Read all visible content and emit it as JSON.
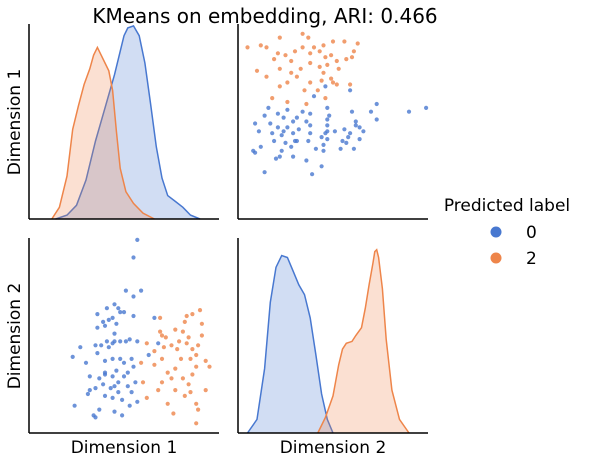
{
  "chart_data": {
    "type": "pairplot",
    "title": "KMeans on embedding, ARI: 0.466",
    "variables": [
      "Dimension 1",
      "Dimension 2"
    ],
    "x_ranges": [
      [
        0.0,
        1.0
      ],
      [
        0.0,
        1.0
      ]
    ],
    "y_ranges": [
      [
        0.0,
        1.0
      ],
      [
        0.0,
        1.0
      ]
    ],
    "grid": false,
    "legend": {
      "title": "Predicted label",
      "placement": "right",
      "entries": [
        {
          "label": "0",
          "color": "#4878d0"
        },
        {
          "label": "2",
          "color": "#ee854a"
        }
      ]
    },
    "series": [
      {
        "label": "0",
        "color": "#4878d0",
        "points": [
          [
            0.57,
            0.99
          ],
          [
            0.55,
            0.9
          ],
          [
            0.36,
            0.61
          ],
          [
            0.59,
            0.73
          ],
          [
            0.51,
            0.73
          ],
          [
            0.55,
            0.7
          ],
          [
            0.45,
            0.66
          ],
          [
            0.47,
            0.64
          ],
          [
            0.41,
            0.64
          ],
          [
            0.48,
            0.62
          ],
          [
            0.55,
            0.6
          ],
          [
            0.44,
            0.59
          ],
          [
            0.42,
            0.58
          ],
          [
            0.39,
            0.57
          ],
          [
            0.46,
            0.56
          ],
          [
            0.4,
            0.55
          ],
          [
            0.36,
            0.54
          ],
          [
            0.53,
            0.48
          ],
          [
            0.57,
            0.47
          ],
          [
            0.51,
            0.47
          ],
          [
            0.48,
            0.47
          ],
          [
            0.45,
            0.47
          ],
          [
            0.41,
            0.47
          ],
          [
            0.44,
            0.46
          ],
          [
            0.35,
            0.45
          ],
          [
            0.38,
            0.45
          ],
          [
            0.42,
            0.44
          ],
          [
            0.27,
            0.44
          ],
          [
            0.36,
            0.41
          ],
          [
            0.54,
            0.38
          ],
          [
            0.48,
            0.38
          ],
          [
            0.44,
            0.38
          ],
          [
            0.4,
            0.37
          ],
          [
            0.3,
            0.36
          ],
          [
            0.5,
            0.36
          ],
          [
            0.55,
            0.34
          ],
          [
            0.46,
            0.32
          ],
          [
            0.52,
            0.31
          ],
          [
            0.4,
            0.3
          ],
          [
            0.44,
            0.29
          ],
          [
            0.5,
            0.29
          ],
          [
            0.32,
            0.29
          ],
          [
            0.37,
            0.28
          ],
          [
            0.47,
            0.26
          ],
          [
            0.56,
            0.26
          ],
          [
            0.39,
            0.25
          ],
          [
            0.52,
            0.24
          ],
          [
            0.35,
            0.23
          ],
          [
            0.43,
            0.23
          ],
          [
            0.32,
            0.22
          ],
          [
            0.47,
            0.21
          ],
          [
            0.54,
            0.21
          ],
          [
            0.31,
            0.2
          ],
          [
            0.4,
            0.19
          ],
          [
            0.44,
            0.18
          ],
          [
            0.49,
            0.17
          ],
          [
            0.57,
            0.16
          ],
          [
            0.53,
            0.14
          ],
          [
            0.24,
            0.14
          ],
          [
            0.37,
            0.12
          ],
          [
            0.45,
            0.11
          ],
          [
            0.34,
            0.09
          ],
          [
            0.49,
            0.09
          ],
          [
            0.66,
            0.59
          ],
          [
            0.45,
            0.51
          ],
          [
            0.23,
            0.39
          ],
          [
            0.63,
            0.4
          ],
          [
            0.4,
            0.31
          ],
          [
            0.45,
            0.24
          ],
          [
            0.35,
            0.08
          ],
          [
            0.5,
            0.62
          ],
          [
            0.68,
            0.46
          ]
        ],
        "diag_density": [
          [
            [
              0.14,
              0.0
            ],
            [
              0.2,
              0.02
            ],
            [
              0.25,
              0.07
            ],
            [
              0.3,
              0.2
            ],
            [
              0.35,
              0.4
            ],
            [
              0.4,
              0.57
            ],
            [
              0.45,
              0.74
            ],
            [
              0.48,
              0.86
            ],
            [
              0.5,
              0.94
            ],
            [
              0.52,
              0.98
            ],
            [
              0.55,
              0.99
            ],
            [
              0.58,
              0.94
            ],
            [
              0.61,
              0.8
            ],
            [
              0.64,
              0.59
            ],
            [
              0.67,
              0.37
            ],
            [
              0.7,
              0.21
            ],
            [
              0.73,
              0.12
            ],
            [
              0.77,
              0.09
            ],
            [
              0.81,
              0.06
            ],
            [
              0.85,
              0.02
            ],
            [
              0.9,
              0.0
            ]
          ],
          [
            [
              0.05,
              0.0
            ],
            [
              0.1,
              0.07
            ],
            [
              0.14,
              0.33
            ],
            [
              0.17,
              0.67
            ],
            [
              0.2,
              0.85
            ],
            [
              0.23,
              0.91
            ],
            [
              0.26,
              0.9
            ],
            [
              0.29,
              0.83
            ],
            [
              0.32,
              0.76
            ],
            [
              0.35,
              0.71
            ],
            [
              0.38,
              0.59
            ],
            [
              0.41,
              0.4
            ],
            [
              0.44,
              0.2
            ],
            [
              0.47,
              0.07
            ],
            [
              0.5,
              0.0
            ]
          ]
        ]
      },
      {
        "label": "2",
        "color": "#ee854a",
        "points": [
          [
            0.69,
            0.59
          ],
          [
            0.62,
            0.46
          ],
          [
            0.59,
            0.36
          ],
          [
            0.75,
            0.45
          ],
          [
            0.77,
            0.53
          ],
          [
            0.78,
            0.43
          ],
          [
            0.77,
            0.22
          ],
          [
            0.82,
            0.57
          ],
          [
            0.83,
            0.6
          ],
          [
            0.9,
            0.63
          ],
          [
            0.91,
            0.56
          ],
          [
            0.89,
            0.45
          ],
          [
            0.86,
            0.43
          ],
          [
            0.83,
            0.46
          ],
          [
            0.7,
            0.5
          ],
          [
            0.71,
            0.44
          ],
          [
            0.66,
            0.42
          ],
          [
            0.7,
            0.38
          ],
          [
            0.66,
            0.35
          ],
          [
            0.8,
            0.38
          ],
          [
            0.85,
            0.38
          ],
          [
            0.77,
            0.33
          ],
          [
            0.73,
            0.31
          ],
          [
            0.88,
            0.34
          ],
          [
            0.93,
            0.37
          ],
          [
            0.86,
            0.3
          ],
          [
            0.84,
            0.25
          ],
          [
            0.82,
            0.19
          ],
          [
            0.68,
            0.22
          ],
          [
            0.6,
            0.26
          ],
          [
            0.62,
            0.18
          ],
          [
            0.85,
            0.21
          ],
          [
            0.88,
            0.15
          ],
          [
            0.91,
            0.5
          ],
          [
            0.95,
            0.34
          ],
          [
            0.76,
            0.1
          ],
          [
            0.73,
            0.15
          ],
          [
            0.89,
            0.12
          ],
          [
            0.93,
            0.22
          ],
          [
            0.88,
            0.05
          ],
          [
            0.86,
            0.61
          ],
          [
            0.7,
            0.26
          ],
          [
            0.69,
            0.52
          ],
          [
            0.72,
            0.49
          ],
          [
            0.81,
            0.52
          ],
          [
            0.84,
            0.49
          ],
          [
            0.88,
            0.4
          ],
          [
            0.81,
            0.28
          ],
          [
            0.75,
            0.28
          ],
          [
            0.79,
            0.47
          ]
        ],
        "diag_density": [
          [
            [
              0.12,
              0.0
            ],
            [
              0.16,
              0.06
            ],
            [
              0.2,
              0.22
            ],
            [
              0.23,
              0.46
            ],
            [
              0.26,
              0.58
            ],
            [
              0.29,
              0.69
            ],
            [
              0.32,
              0.77
            ],
            [
              0.34,
              0.84
            ],
            [
              0.36,
              0.88
            ],
            [
              0.38,
              0.84
            ],
            [
              0.4,
              0.8
            ],
            [
              0.42,
              0.76
            ],
            [
              0.44,
              0.66
            ],
            [
              0.46,
              0.45
            ],
            [
              0.48,
              0.26
            ],
            [
              0.51,
              0.14
            ],
            [
              0.55,
              0.08
            ],
            [
              0.6,
              0.03
            ],
            [
              0.66,
              0.0
            ]
          ],
          [
            [
              0.42,
              0.0
            ],
            [
              0.46,
              0.08
            ],
            [
              0.5,
              0.19
            ],
            [
              0.53,
              0.35
            ],
            [
              0.55,
              0.43
            ],
            [
              0.57,
              0.46
            ],
            [
              0.6,
              0.47
            ],
            [
              0.62,
              0.5
            ],
            [
              0.65,
              0.54
            ],
            [
              0.67,
              0.64
            ],
            [
              0.69,
              0.76
            ],
            [
              0.71,
              0.87
            ],
            [
              0.72,
              0.93
            ],
            [
              0.73,
              0.94
            ],
            [
              0.74,
              0.9
            ],
            [
              0.76,
              0.74
            ],
            [
              0.78,
              0.48
            ],
            [
              0.81,
              0.22
            ],
            [
              0.85,
              0.07
            ],
            [
              0.9,
              0.0
            ]
          ]
        ]
      }
    ]
  }
}
